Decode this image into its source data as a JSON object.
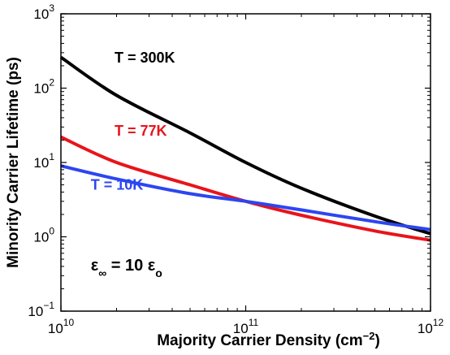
{
  "chart_data": {
    "type": "line",
    "xlabel": "Majority Carrier Density (cm",
    "xlabel_exp": "−2",
    "xlabel_close": ")",
    "ylabel": "Minority Carrier Lifetime (ps)",
    "xscale": "log",
    "yscale": "log",
    "xlim": [
      10000000000.0,
      1000000000000.0
    ],
    "ylim": [
      0.1,
      1000
    ],
    "grid": false,
    "x_ticks": [
      {
        "value": 10000000000.0,
        "base": "10",
        "exp": "10"
      },
      {
        "value": 100000000000.0,
        "base": "10",
        "exp": "11"
      },
      {
        "value": 1000000000000.0,
        "base": "10",
        "exp": "12"
      }
    ],
    "y_ticks": [
      {
        "value": 0.1,
        "base": "10",
        "exp": "−1"
      },
      {
        "value": 1,
        "base": "10",
        "exp": "0"
      },
      {
        "value": 10,
        "base": "10",
        "exp": "1"
      },
      {
        "value": 100,
        "base": "10",
        "exp": "2"
      },
      {
        "value": 1000,
        "base": "10",
        "exp": "3"
      }
    ],
    "x": [
      10000000000.0,
      20000000000.0,
      50000000000.0,
      100000000000.0,
      200000000000.0,
      500000000000.0,
      1000000000000.0
    ],
    "series": [
      {
        "name": "T = 300K",
        "color": "#000000",
        "values": [
          260,
          80,
          25,
          10,
          4.5,
          1.9,
          1.1
        ],
        "label_at": [
          19500000000.0,
          220
        ]
      },
      {
        "name": "T = 77K",
        "color": "#e8141b",
        "values": [
          22,
          10,
          5,
          3,
          1.95,
          1.2,
          0.9
        ],
        "label_at": [
          19500000000.0,
          23
        ]
      },
      {
        "name": "T = 10K",
        "color": "#2c46f0",
        "values": [
          9,
          6,
          3.8,
          3.0,
          2.3,
          1.6,
          1.25
        ],
        "label_at": [
          14500000000.0,
          4.3
        ]
      }
    ],
    "annotation": {
      "base": "ε",
      "sub1": "∞",
      "middle": " = 10 ε",
      "sub2": "o",
      "at": [
        14500000000.0,
        0.35
      ]
    }
  }
}
